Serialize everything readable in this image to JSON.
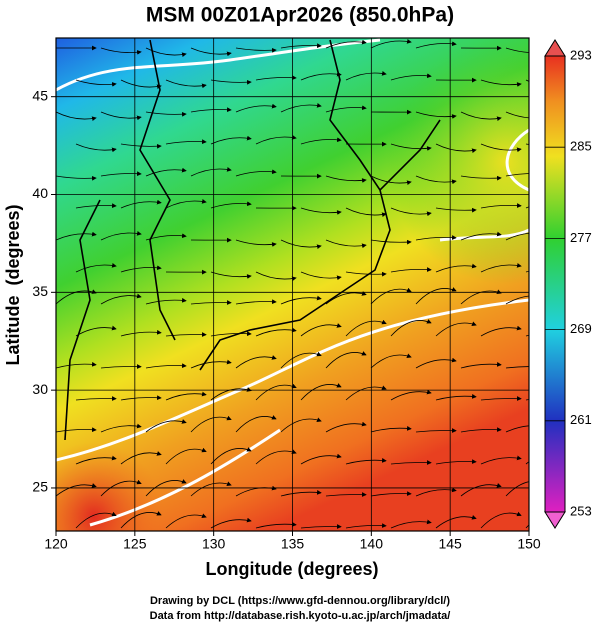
{
  "title": "MSM 00Z01Apr2026 (850.0hPa)",
  "x_axis": {
    "label": "Longitude (degrees)",
    "lim": [
      120,
      150
    ],
    "ticks": [
      120,
      125,
      130,
      135,
      140,
      145,
      150
    ]
  },
  "y_axis": {
    "label": "Latitude  (degrees)",
    "lim": [
      22.8,
      48
    ],
    "ticks": [
      25,
      30,
      35,
      40,
      45
    ]
  },
  "colorbar": {
    "lim": [
      253,
      293
    ],
    "ticks": [
      253,
      261,
      269,
      277,
      285,
      293
    ]
  },
  "credits": [
    "Drawing by DCL (https://www.gfd-dennou.org/library/dcl/)",
    "Data from http://database.rish.kyoto-u.ac.jp/arch/jmadata/"
  ]
}
